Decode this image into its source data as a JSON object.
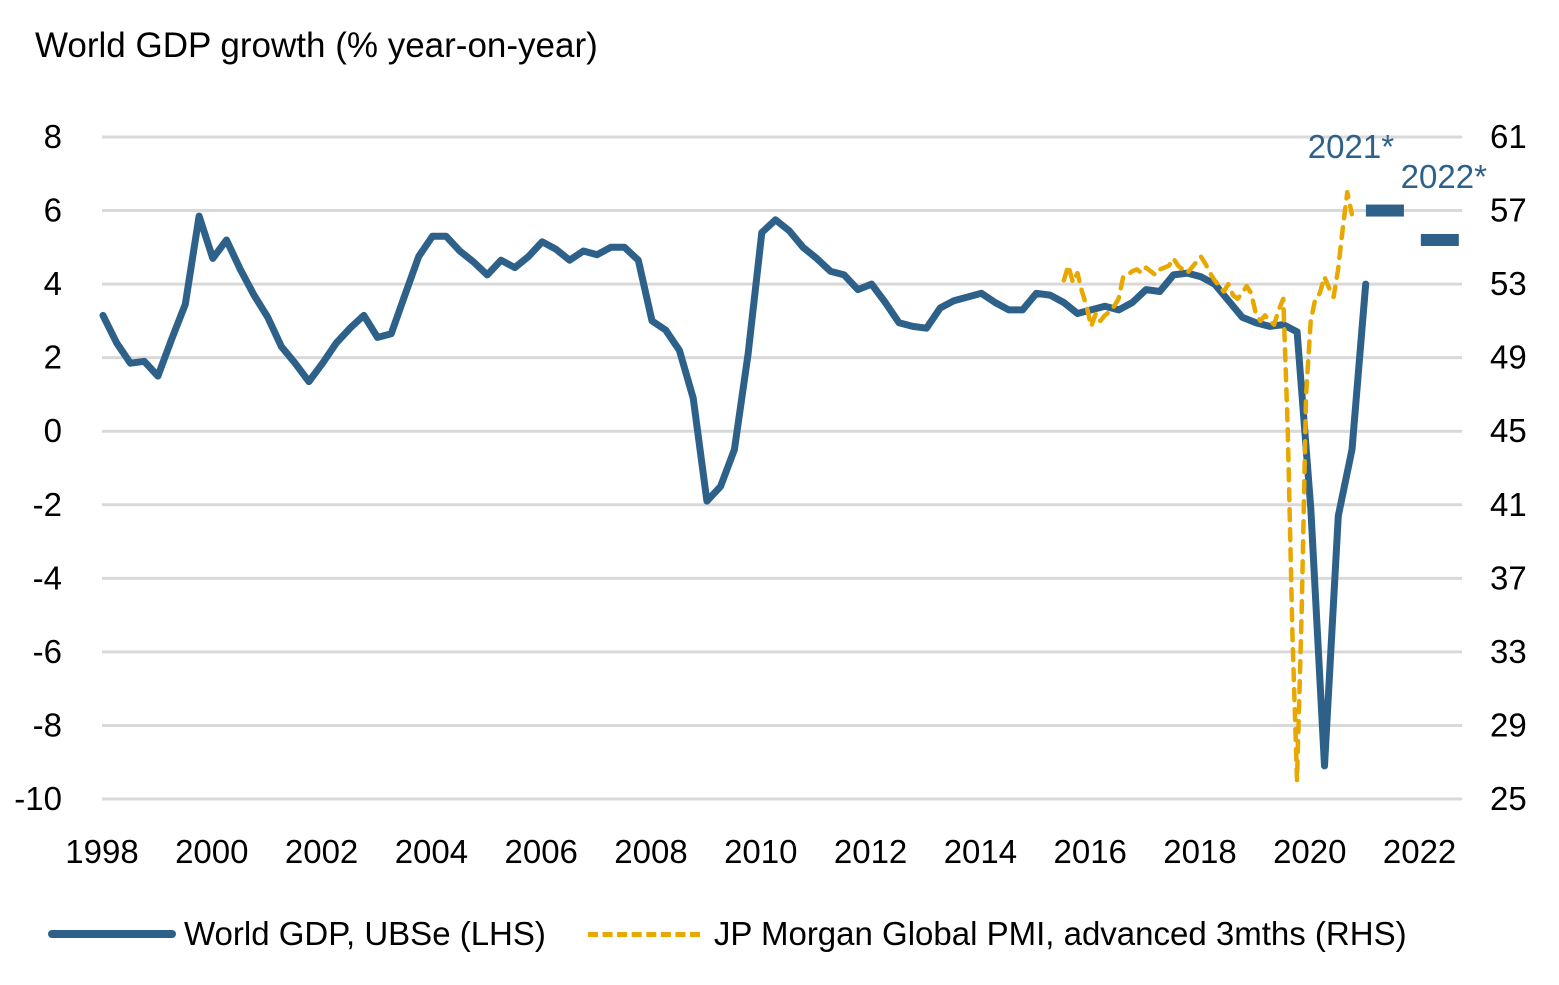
{
  "chart_data": {
    "type": "line",
    "title": "World GDP growth (% year-on-year)",
    "xlabel": "",
    "ylabel": "World GDP growth (% year-on-year)",
    "x_ticks": [
      "1998",
      "2000",
      "2002",
      "2004",
      "2006",
      "2008",
      "2010",
      "2012",
      "2014",
      "2016",
      "2018",
      "2020",
      "2022"
    ],
    "xlim": [
      1998,
      2022.8
    ],
    "y_left": {
      "ticks": [
        8,
        6,
        4,
        2,
        0,
        -2,
        -4,
        -6,
        -8,
        -10
      ],
      "ylim": [
        -10,
        8
      ]
    },
    "y_right": {
      "ticks": [
        61,
        57,
        53,
        49,
        45,
        41,
        37,
        33,
        29,
        25
      ],
      "ylim": [
        25,
        61
      ]
    },
    "grid": true,
    "legend_position": "bottom",
    "series": [
      {
        "name": "World GDP, UBSe (LHS)",
        "axis": "left",
        "style": "solid",
        "color": "#2e6189",
        "x_start": 1998.0,
        "x_step": 0.25,
        "values": [
          3.15,
          2.4,
          1.85,
          1.9,
          1.5,
          2.5,
          3.45,
          5.85,
          4.7,
          5.2,
          4.4,
          3.7,
          3.1,
          2.3,
          1.85,
          1.35,
          1.85,
          2.4,
          2.8,
          3.15,
          2.55,
          2.65,
          3.7,
          4.75,
          5.3,
          5.3,
          4.9,
          4.6,
          4.25,
          4.65,
          4.45,
          4.75,
          5.15,
          4.95,
          4.65,
          4.9,
          4.8,
          5.0,
          5.0,
          4.65,
          3.0,
          2.75,
          2.2,
          0.9,
          -1.9,
          -1.5,
          -0.5,
          2.1,
          5.4,
          5.75,
          5.45,
          5.0,
          4.7,
          4.35,
          4.25,
          3.85,
          4.0,
          3.5,
          2.95,
          2.85,
          2.8,
          3.35,
          3.55,
          3.65,
          3.75,
          3.5,
          3.3,
          3.3,
          3.75,
          3.7,
          3.5,
          3.2,
          3.3,
          3.4,
          3.3,
          3.5,
          3.85,
          3.8,
          4.25,
          4.3,
          4.2,
          4.0,
          3.55,
          3.1,
          2.95,
          2.85,
          2.9,
          2.7,
          -2.1,
          -9.1,
          -2.3,
          -0.5,
          4.0
        ]
      },
      {
        "name": "JP Morgan Global PMI, advanced 3mths (RHS)",
        "axis": "right",
        "style": "dashed",
        "color": "#e8a800",
        "x_start": 2015.5,
        "x_step": 0.0833,
        "values": [
          53.2,
          54.0,
          53.1,
          53.6,
          52.6,
          51.8,
          50.7,
          51.4,
          51.0,
          51.3,
          51.5,
          51.8,
          52.2,
          53.4,
          53.5,
          53.7,
          53.8,
          53.6,
          53.9,
          53.7,
          53.5,
          53.8,
          53.9,
          54.0,
          54.4,
          54.0,
          53.8,
          53.6,
          53.9,
          54.2,
          54.5,
          54.1,
          53.6,
          53.2,
          52.9,
          52.6,
          53.0,
          52.4,
          52.2,
          52.5,
          52.9,
          52.5,
          51.4,
          51.0,
          51.3,
          51.0,
          50.8,
          51.6,
          52.2,
          45.0,
          34.0,
          26.0,
          35.0,
          47.0,
          51.0,
          52.2,
          52.5,
          53.4,
          52.8,
          52.3,
          53.8,
          56.0,
          58.0,
          56.8
        ]
      }
    ],
    "annotations": [
      {
        "label": "2021*",
        "value": 6.0,
        "axis": "left",
        "x": 2021.35,
        "color": "#2e6189"
      },
      {
        "label": "2022*",
        "value": 5.2,
        "axis": "left",
        "x": 2022.35,
        "color": "#2e6189"
      }
    ]
  },
  "legend": {
    "items": [
      {
        "label": "World GDP, UBSe (LHS)",
        "style": "solid",
        "color": "#2e6189"
      },
      {
        "label": "JP Morgan Global PMI, advanced 3mths (RHS)",
        "style": "dashed",
        "color": "#e8a800"
      }
    ]
  }
}
